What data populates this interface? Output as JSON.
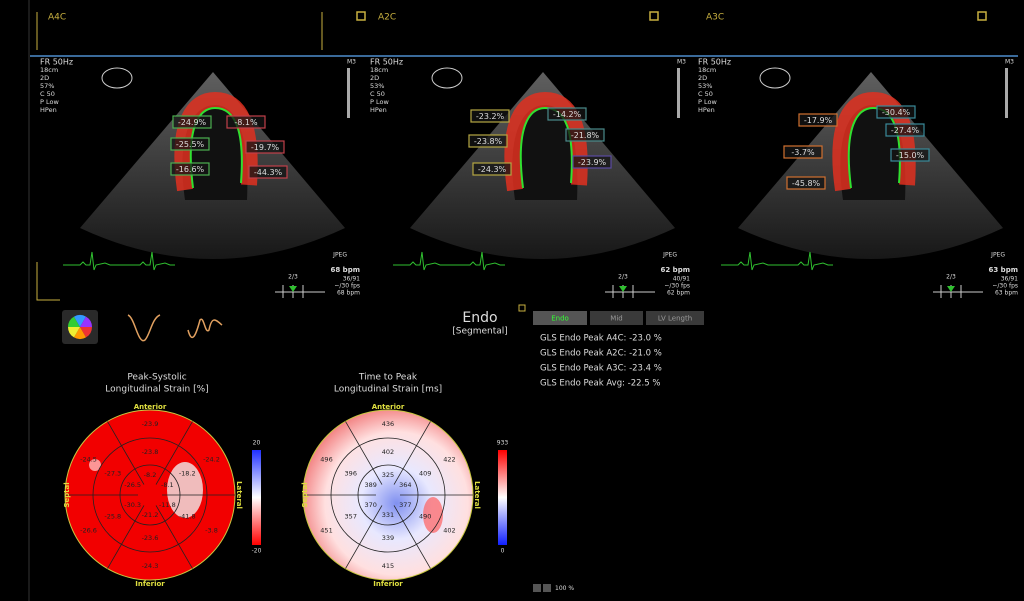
{
  "views": [
    {
      "label": "A4C",
      "info": [
        "FR 50Hz",
        "18cm",
        "2D",
        "57%",
        "C 50",
        "P Low",
        "HPen"
      ],
      "probe": "M3",
      "format": "JPEG",
      "beat": "2/3",
      "stats": [
        "36/91",
        "~/30 fps",
        "68 bpm"
      ],
      "hr": "68 bpm",
      "strain_labels": [
        {
          "text": "-24.9%",
          "color": "#4caf50"
        },
        {
          "text": "-25.5%",
          "color": "#4caf50"
        },
        {
          "text": "-16.6%",
          "color": "#4caf50"
        },
        {
          "text": "-8.1%",
          "color": "#c0404a"
        },
        {
          "text": "-19.7%",
          "color": "#c0404a"
        },
        {
          "text": "-44.3%",
          "color": "#c0404a"
        }
      ]
    },
    {
      "label": "A2C",
      "info": [
        "FR 50Hz",
        "18cm",
        "2D",
        "53%",
        "C 50",
        "P Low",
        "HPen"
      ],
      "probe": "M3",
      "format": "JPEG",
      "beat": "2/3",
      "stats": [
        "40/91",
        "~/30 fps",
        "62 bpm"
      ],
      "hr": "62 bpm",
      "strain_labels": [
        {
          "text": "-23.2%",
          "color": "#b5a642"
        },
        {
          "text": "-23.8%",
          "color": "#b5a642"
        },
        {
          "text": "-24.3%",
          "color": "#b5a642"
        },
        {
          "text": "-14.2%",
          "color": "#4a8a8a"
        },
        {
          "text": "-21.8%",
          "color": "#4a8a8a"
        },
        {
          "text": "-23.9%",
          "color": "#5a4aa0"
        }
      ]
    },
    {
      "label": "A3C",
      "info": [
        "FR 50Hz",
        "18cm",
        "2D",
        "53%",
        "C 50",
        "P Low",
        "HPen"
      ],
      "probe": "M3",
      "format": "JPEG",
      "beat": "2/3",
      "stats": [
        "36/91",
        "~/30 fps",
        "63 bpm"
      ],
      "hr": "63 bpm",
      "strain_labels": [
        {
          "text": "-17.9%",
          "color": "#d07030"
        },
        {
          "text": "-3.7%",
          "color": "#d07030"
        },
        {
          "text": "-45.8%",
          "color": "#d07030"
        },
        {
          "text": "-30.4%",
          "color": "#3a8a9a"
        },
        {
          "text": "-27.4%",
          "color": "#3a8a9a"
        },
        {
          "text": "-15.0%",
          "color": "#3a8a9a"
        }
      ]
    }
  ],
  "results": {
    "heading": "Endo",
    "subheading": "[Segmental]",
    "tabs": [
      {
        "label": "Endo",
        "active": true
      },
      {
        "label": "Mid",
        "active": false
      },
      {
        "label": "LV Length",
        "active": false
      }
    ],
    "gls": [
      "GLS Endo Peak A4C: -23.0 %",
      "GLS Endo Peak A2C: -21.0 %",
      "GLS Endo Peak A3C: -23.4 %",
      "GLS Endo Peak Avg: -22.5 %"
    ]
  },
  "bullseyes": [
    {
      "title": [
        "Peak-Systolic",
        "Longitudinal Strain [%]"
      ],
      "orientation": {
        "top": "Anterior",
        "bottom": "Inferior",
        "left": "Septal",
        "right": "Lateral"
      },
      "segments": {
        "outer": [
          "-23.9",
          "-24.2",
          "-3.8",
          "-24.3",
          "-26.6",
          "-24.5"
        ],
        "mid": [
          "-23.8",
          "-18.2",
          "-41.8",
          "-23.6",
          "-25.8",
          "-27.3"
        ],
        "inner": [
          "-8.2",
          "-8.1",
          "-11.8",
          "-21.2",
          "-30.3",
          "-26.5"
        ]
      },
      "scale": {
        "max": "20",
        "min": "-20"
      },
      "style": "strain"
    },
    {
      "title": [
        "Time to Peak",
        "Longitudinal Strain [ms]"
      ],
      "orientation": {
        "top": "Anterior",
        "bottom": "Inferior",
        "left": "Septal",
        "right": "Lateral"
      },
      "segments": {
        "outer": [
          "436",
          "422",
          "402",
          "415",
          "451",
          "496"
        ],
        "mid": [
          "402",
          "409",
          "490",
          "339",
          "357",
          "396"
        ],
        "inner": [
          "325",
          "364",
          "377",
          "331",
          "370",
          "389"
        ]
      },
      "scale": {
        "max": "933",
        "min": "0"
      },
      "style": "time"
    }
  ],
  "zoom": "100 %"
}
